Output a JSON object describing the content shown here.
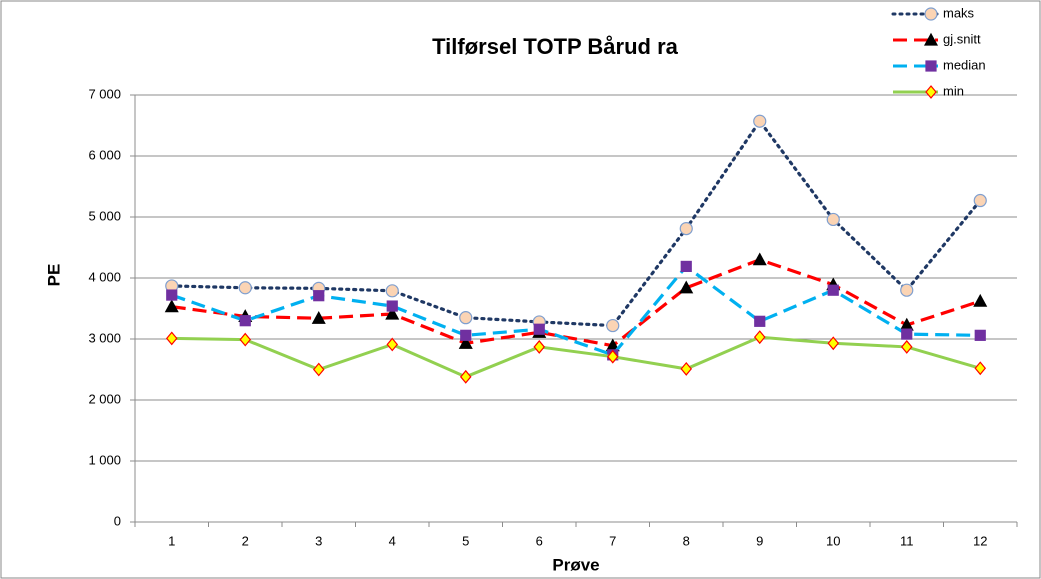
{
  "chart_data": {
    "type": "line",
    "title": "Tilførsel TOTP Bårud ra",
    "x_label": "Prøve",
    "y_label": "PE",
    "categories": [
      "1",
      "2",
      "3",
      "4",
      "5",
      "6",
      "7",
      "8",
      "9",
      "10",
      "11",
      "12"
    ],
    "ylim": [
      0,
      7000
    ],
    "yticks": [
      {
        "value": 0,
        "label": "0"
      },
      {
        "value": 1000,
        "label": "1 000"
      },
      {
        "value": 2000,
        "label": "2 000"
      },
      {
        "value": 3000,
        "label": "3 000"
      },
      {
        "value": 4000,
        "label": "4 000"
      },
      {
        "value": 5000,
        "label": "5 000"
      },
      {
        "value": 6000,
        "label": "6 000"
      },
      {
        "value": 7000,
        "label": "7 000"
      }
    ],
    "grid": true,
    "legend": "upper right",
    "series": [
      {
        "name": "maks",
        "color": "#1f3864",
        "dash": "dotted",
        "marker": "circle",
        "marker_fill": "#fbd4b4",
        "marker_stroke": "#7f9fcf",
        "values": [
          3870,
          3840,
          3830,
          3790,
          3350,
          3280,
          3220,
          4810,
          6570,
          4960,
          3800,
          5270
        ]
      },
      {
        "name": "gj.snitt",
        "color": "#ff0000",
        "dash": "dashed",
        "marker": "triangle",
        "marker_fill": "#000000",
        "marker_stroke": "#000000",
        "values": [
          3530,
          3370,
          3340,
          3410,
          2930,
          3110,
          2890,
          3840,
          4300,
          3890,
          3230,
          3620
        ]
      },
      {
        "name": "median",
        "color": "#00b0f0",
        "dash": "dashed",
        "marker": "square",
        "marker_fill": "#7030a0",
        "marker_stroke": "#7030a0",
        "values": [
          3720,
          3300,
          3710,
          3540,
          3060,
          3160,
          2740,
          4190,
          3290,
          3800,
          3080,
          3060
        ]
      },
      {
        "name": "min",
        "color": "#92d050",
        "dash": "solid",
        "marker": "diamond",
        "marker_fill": "#ffff00",
        "marker_stroke": "#ff0000",
        "values": [
          3010,
          2990,
          2500,
          2910,
          2380,
          2870,
          2710,
          2510,
          3030,
          2930,
          2870,
          2520
        ]
      }
    ]
  }
}
